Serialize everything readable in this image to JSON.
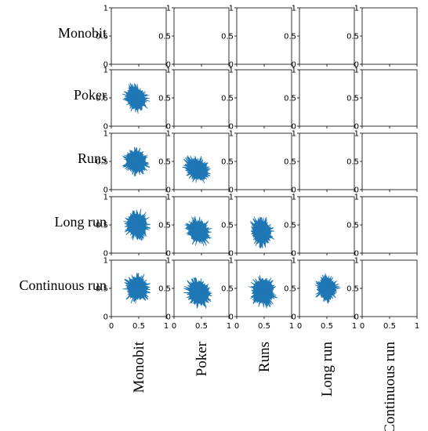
{
  "chart_data": {
    "type": "scatter",
    "title": "",
    "variables": [
      "Monobit",
      "Poker",
      "Runs",
      "Long run",
      "Continuous run"
    ],
    "row_labels": [
      "Monobit",
      "Poker",
      "Runs",
      "Long run",
      "Continuous run"
    ],
    "column_labels": [
      "Monobit",
      "Poker",
      "Runs",
      "Long run",
      "Continuous run"
    ],
    "axis_range": [
      0,
      1
    ],
    "y_ticks": [
      "0",
      "0.5",
      "1"
    ],
    "x_ticks": [
      "0",
      "0.5",
      "1"
    ],
    "grid": false,
    "series_color": "#1f77b4",
    "layout": "lower-triangular scatter matrix; upper triangle and diagonal panels are empty",
    "panels": [
      {
        "row": "Poker",
        "column": "Monobit",
        "center": [
          0.45,
          0.5
        ],
        "spread": [
          0.38,
          0.42
        ],
        "tilt": -0.15
      },
      {
        "row": "Runs",
        "column": "Monobit",
        "center": [
          0.45,
          0.5
        ],
        "spread": [
          0.4,
          0.42
        ],
        "tilt": -0.1
      },
      {
        "row": "Runs",
        "column": "Poker",
        "center": [
          0.42,
          0.36
        ],
        "spread": [
          0.42,
          0.4
        ],
        "tilt": -0.25
      },
      {
        "row": "Long run",
        "column": "Monobit",
        "center": [
          0.47,
          0.5
        ],
        "spread": [
          0.4,
          0.44
        ],
        "tilt": 0
      },
      {
        "row": "Long run",
        "column": "Poker",
        "center": [
          0.45,
          0.38
        ],
        "spread": [
          0.4,
          0.42
        ],
        "tilt": -0.15
      },
      {
        "row": "Long run",
        "column": "Runs",
        "center": [
          0.45,
          0.38
        ],
        "spread": [
          0.38,
          0.44
        ],
        "tilt": -0.1
      },
      {
        "row": "Continuous run",
        "column": "Monobit",
        "center": [
          0.47,
          0.5
        ],
        "spread": [
          0.4,
          0.44
        ],
        "tilt": 0
      },
      {
        "row": "Continuous run",
        "column": "Poker",
        "center": [
          0.45,
          0.42
        ],
        "spread": [
          0.42,
          0.44
        ],
        "tilt": -0.1
      },
      {
        "row": "Continuous run",
        "column": "Runs",
        "center": [
          0.48,
          0.45
        ],
        "spread": [
          0.42,
          0.46
        ],
        "tilt": -0.05
      },
      {
        "row": "Continuous run",
        "column": "Long run",
        "center": [
          0.5,
          0.5
        ],
        "spread": [
          0.36,
          0.4
        ],
        "tilt": 0
      }
    ]
  }
}
